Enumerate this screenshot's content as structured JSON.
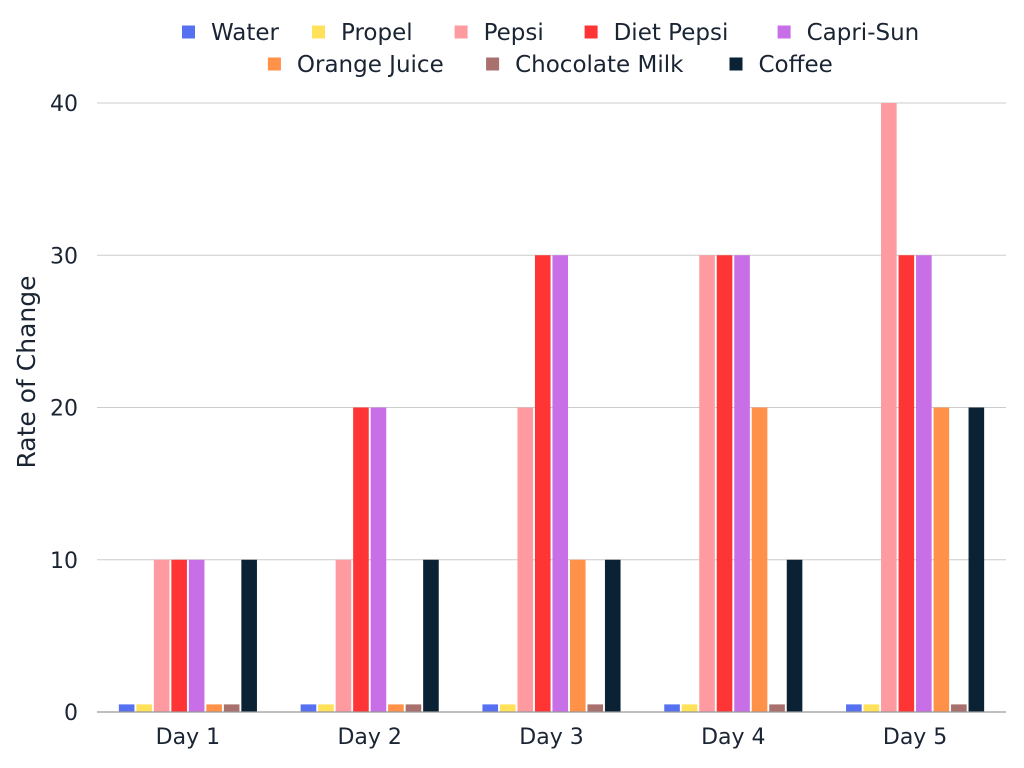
{
  "chart_data": {
    "type": "bar",
    "categories": [
      "Day 1",
      "Day 2",
      "Day 3",
      "Day 4",
      "Day 5"
    ],
    "series": [
      {
        "name": "Water",
        "color": "#5571f2",
        "values": [
          0.5,
          0.5,
          0.5,
          0.5,
          0.5
        ]
      },
      {
        "name": "Propel",
        "color": "#ffe15a",
        "values": [
          0.5,
          0.5,
          0.5,
          0.5,
          0.5
        ]
      },
      {
        "name": "Pepsi",
        "color": "#ff9aa0",
        "values": [
          10,
          10,
          20,
          30,
          40
        ]
      },
      {
        "name": "Diet Pepsi",
        "color": "#ff3434",
        "values": [
          10,
          20,
          30,
          30,
          30
        ]
      },
      {
        "name": "Capri-Sun",
        "color": "#c86ee6",
        "values": [
          10,
          20,
          30,
          30,
          30
        ]
      },
      {
        "name": "Orange Juice",
        "color": "#ff9148",
        "values": [
          0.5,
          0.5,
          10,
          20,
          20
        ]
      },
      {
        "name": "Chocolate Milk",
        "color": "#a8716e",
        "values": [
          0.5,
          0.5,
          0.5,
          0.5,
          0.5
        ]
      },
      {
        "name": "Coffee",
        "color": "#0a2233",
        "values": [
          10,
          10,
          10,
          10,
          20
        ]
      }
    ],
    "title": "",
    "xlabel": "",
    "ylabel": "Rate of Change",
    "ylim": [
      0,
      40
    ],
    "yticks": [
      0,
      10,
      20,
      30,
      40
    ],
    "grid": true,
    "legend_position": "top"
  }
}
